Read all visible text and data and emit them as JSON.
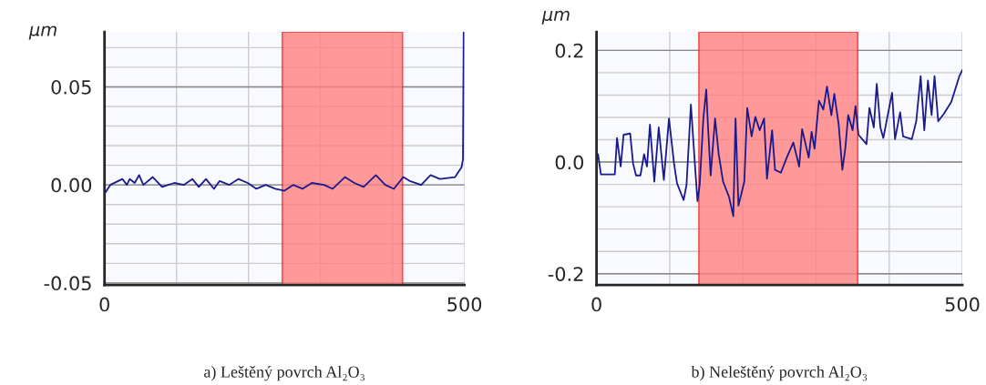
{
  "chart_data": [
    {
      "type": "line",
      "xlabel": "a) Leštěný povrch Al₂O₃",
      "ylabel": "µm",
      "series": [
        {
          "color": "#1a1a8c",
          "x": [
            1,
            8,
            25,
            31,
            35,
            42,
            48,
            54,
            67,
            80,
            97,
            110,
            122,
            131,
            141,
            152,
            160,
            173,
            186,
            199,
            211,
            224,
            237,
            250,
            262,
            275,
            288,
            305,
            317,
            334,
            347,
            360,
            377,
            390,
            402,
            415,
            424,
            440,
            453,
            466,
            487,
            496,
            498,
            499
          ],
          "values": [
            -0.004,
            0,
            0.003,
            0,
            0.003,
            0.001,
            0.005,
            0,
            0.004,
            -0.001,
            0.001,
            0,
            0.003,
            -0.001,
            0.003,
            -0.002,
            0.002,
            0,
            0.003,
            0.001,
            -0.002,
            0,
            -0.002,
            -0.003,
            0,
            -0.002,
            0.001,
            0,
            -0.002,
            0.004,
            0.001,
            -0.001,
            0.005,
            0,
            -0.002,
            0.004,
            0.002,
            0,
            0.005,
            0.003,
            0.004,
            0.009,
            0.013,
            0.078
          ]
        }
      ],
      "xlim": [
        0,
        500
      ],
      "xticks": [
        0,
        {
          "value": 100,
          "label": null
        },
        {
          "value": 200,
          "label": null
        },
        {
          "value": 300,
          "label": null
        },
        {
          "value": 400,
          "label": null
        },
        500
      ],
      "ylim": [
        -0.051,
        0.078
      ],
      "yticks": [
        {
          "value": -0.05,
          "label": "-0.05"
        },
        {
          "value": -0.04,
          "label": null
        },
        {
          "value": -0.03,
          "label": null
        },
        {
          "value": -0.02,
          "label": null
        },
        {
          "value": -0.01,
          "label": null
        },
        {
          "value": 0,
          "label": "0.00"
        },
        {
          "value": 0.01,
          "label": null
        },
        {
          "value": 0.02,
          "label": null
        },
        {
          "value": 0.03,
          "label": null
        },
        {
          "value": 0.04,
          "label": null
        },
        {
          "value": 0.05,
          "label": "0.05"
        },
        {
          "value": 0.06,
          "label": null
        },
        {
          "value": 0.07,
          "label": null
        }
      ],
      "bands": [
        {
          "axis": "x",
          "from": 247,
          "to": 414,
          "color": "#ff8080"
        }
      ],
      "grid": true,
      "marker": "none",
      "line_style": "solid"
    },
    {
      "type": "line",
      "xlabel": "b) Neleštěný povrch Al₂O₃",
      "ylabel": "µm",
      "series": [
        {
          "color": "#1a1a8c",
          "x": [
            2,
            6,
            25,
            28,
            33,
            37,
            46,
            50,
            54,
            60,
            65,
            69,
            73,
            79,
            85,
            92,
            99,
            106,
            110,
            119,
            123,
            129,
            135,
            138,
            141,
            146,
            150,
            152,
            156,
            162,
            167,
            173,
            181,
            187,
            190,
            194,
            202,
            206,
            212,
            217,
            223,
            229,
            233,
            240,
            244,
            252,
            260,
            269,
            277,
            281,
            290,
            294,
            298,
            304,
            310,
            315,
            321,
            325,
            331,
            336,
            340,
            344,
            350,
            354,
            358,
            369,
            373,
            379,
            383,
            388,
            392,
            404,
            408,
            415,
            419,
            431,
            437,
            443,
            448,
            453,
            458,
            462,
            467,
            475,
            485,
            496,
            500
          ],
          "values": [
            0.014,
            -0.022,
            -0.022,
            0.043,
            -0.008,
            0.049,
            0.051,
            -0.003,
            -0.024,
            -0.024,
            0.014,
            -0.008,
            0.067,
            -0.035,
            0.062,
            -0.032,
            0.078,
            -0.003,
            -0.038,
            -0.068,
            -0.041,
            0.103,
            -0.014,
            -0.07,
            -0.041,
            0.078,
            0.13,
            0.073,
            -0.024,
            0.078,
            0.014,
            -0.035,
            -0.062,
            -0.097,
            0.078,
            -0.078,
            -0.035,
            0.097,
            0.046,
            0.081,
            0.057,
            0.078,
            -0.03,
            0.057,
            -0.014,
            -0.019,
            0.008,
            0.035,
            -0.008,
            0.059,
            0.008,
            0.054,
            0.024,
            0.11,
            0.094,
            0.135,
            0.084,
            0.122,
            0.067,
            -0.014,
            0.024,
            0.084,
            0.057,
            0.1,
            0.049,
            0.032,
            0.097,
            0.062,
            0.14,
            0.062,
            0.043,
            0.124,
            0.041,
            0.089,
            0.046,
            0.041,
            0.073,
            0.154,
            0.057,
            0.146,
            0.084,
            0.154,
            0.073,
            0.087,
            0.108,
            0.154,
            0.165
          ]
        }
      ],
      "xlim": [
        0,
        500
      ],
      "xticks": [
        0,
        {
          "value": 100,
          "label": null
        },
        {
          "value": 200,
          "label": null
        },
        {
          "value": 300,
          "label": null
        },
        {
          "value": 400,
          "label": null
        },
        500
      ],
      "ylim": [
        -0.22,
        0.233
      ],
      "yticks": [
        {
          "value": -0.2,
          "label": "-0.2"
        },
        {
          "value": -0.16,
          "label": null
        },
        {
          "value": -0.12,
          "label": null
        },
        {
          "value": -0.08,
          "label": null
        },
        {
          "value": -0.04,
          "label": null
        },
        {
          "value": 0,
          "label": "0.0"
        },
        {
          "value": 0.04,
          "label": null
        },
        {
          "value": 0.08,
          "label": null
        },
        {
          "value": 0.12,
          "label": null
        },
        {
          "value": 0.16,
          "label": null
        },
        {
          "value": 0.2,
          "label": "0.2"
        }
      ],
      "bands": [
        {
          "axis": "x",
          "from": 140,
          "to": 357,
          "color": "#ff8080"
        }
      ],
      "grid": true,
      "marker": "none",
      "line_style": "solid"
    }
  ]
}
